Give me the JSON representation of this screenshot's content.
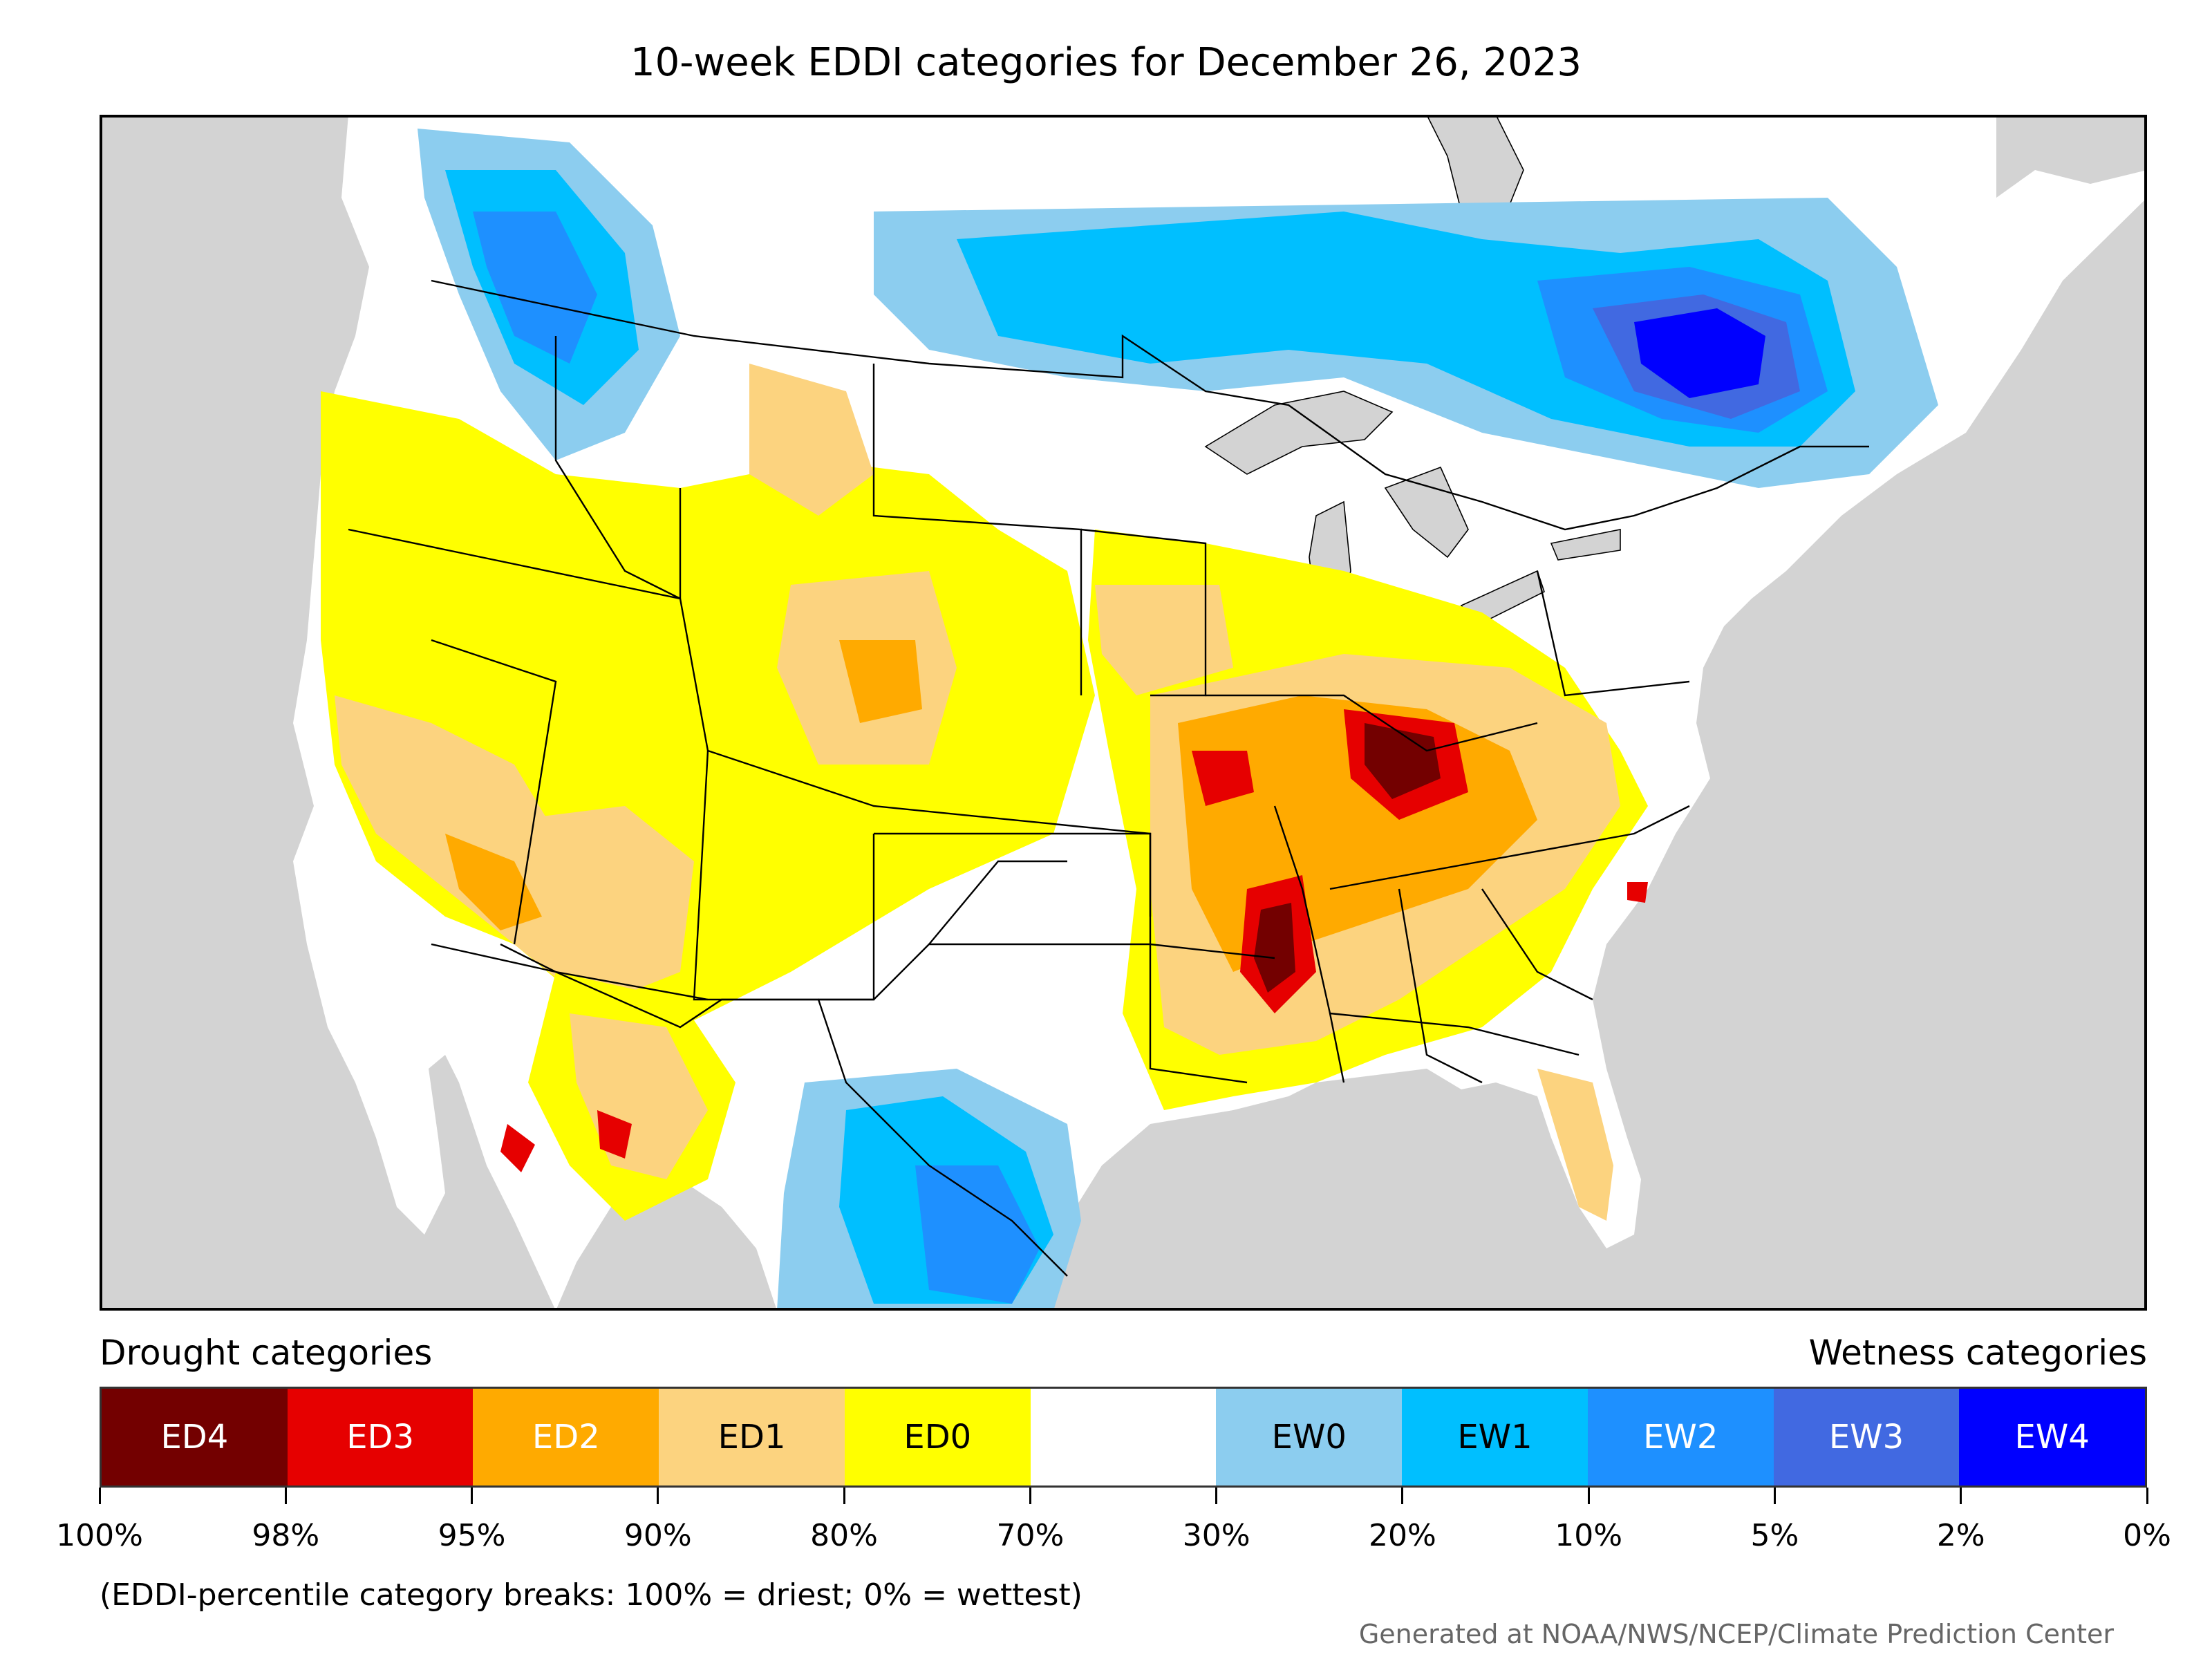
{
  "title": "10-week EDDI categories for December 26, 2023",
  "legend": {
    "left_label": "Drought categories",
    "right_label": "Wetness categories",
    "categories": [
      {
        "label": "ED4",
        "color": "#730000",
        "text_color": "#ffffff"
      },
      {
        "label": "ED3",
        "color": "#e60000",
        "text_color": "#ffffff"
      },
      {
        "label": "ED2",
        "color": "#ffaa00",
        "text_color": "#ffffff"
      },
      {
        "label": "ED1",
        "color": "#fcd37f",
        "text_color": "#000000"
      },
      {
        "label": "ED0",
        "color": "#ffff00",
        "text_color": "#000000"
      },
      {
        "label": "",
        "color": "#ffffff",
        "text_color": "#000000"
      },
      {
        "label": "EW0",
        "color": "#8ccdef",
        "text_color": "#000000"
      },
      {
        "label": "EW1",
        "color": "#00bfff",
        "text_color": "#000000"
      },
      {
        "label": "EW2",
        "color": "#1e90ff",
        "text_color": "#ffffff"
      },
      {
        "label": "EW3",
        "color": "#4169e1",
        "text_color": "#ffffff"
      },
      {
        "label": "EW4",
        "color": "#0000ff",
        "text_color": "#ffffff"
      }
    ],
    "ticks": [
      "100%",
      "98%",
      "95%",
      "90%",
      "80%",
      "70%",
      "30%",
      "20%",
      "10%",
      "5%",
      "2%",
      "0%"
    ]
  },
  "note": "(EDDI-percentile category breaks: 100% = driest; 0% = wettest)",
  "credit": "Generated at NOAA/NWS/NCEP/Climate Prediction Center",
  "colors": {
    "ocean": "#d3d3d3",
    "land": "#ffffff",
    "border": "#000000"
  }
}
